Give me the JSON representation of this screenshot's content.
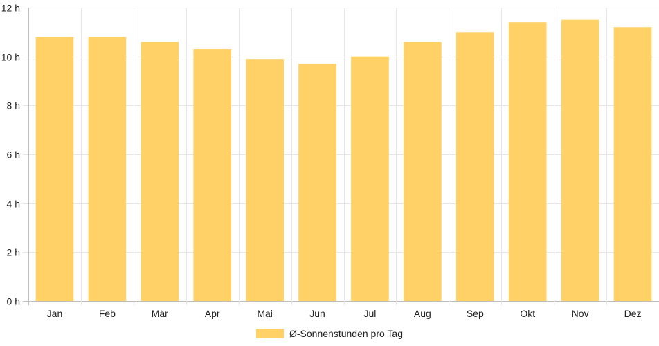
{
  "chart_data": {
    "type": "bar",
    "categories": [
      "Jan",
      "Feb",
      "Mär",
      "Apr",
      "Mai",
      "Jun",
      "Jul",
      "Aug",
      "Sep",
      "Okt",
      "Nov",
      "Dez"
    ],
    "series": [
      {
        "name": "Ø-Sonnenstunden pro Tag",
        "values": [
          10.8,
          10.8,
          10.6,
          10.3,
          9.9,
          9.7,
          10.0,
          10.6,
          11.0,
          11.4,
          11.5,
          11.2
        ],
        "color": "#ffd166"
      }
    ],
    "ylim": [
      0,
      12
    ],
    "yticks": [
      0,
      2,
      4,
      6,
      8,
      10,
      12
    ],
    "ytick_suffix": " h",
    "grid": true,
    "legend_position": "bottom-center",
    "grid_color": "#e6e6e6",
    "axis_color": "#bdbdbd"
  }
}
